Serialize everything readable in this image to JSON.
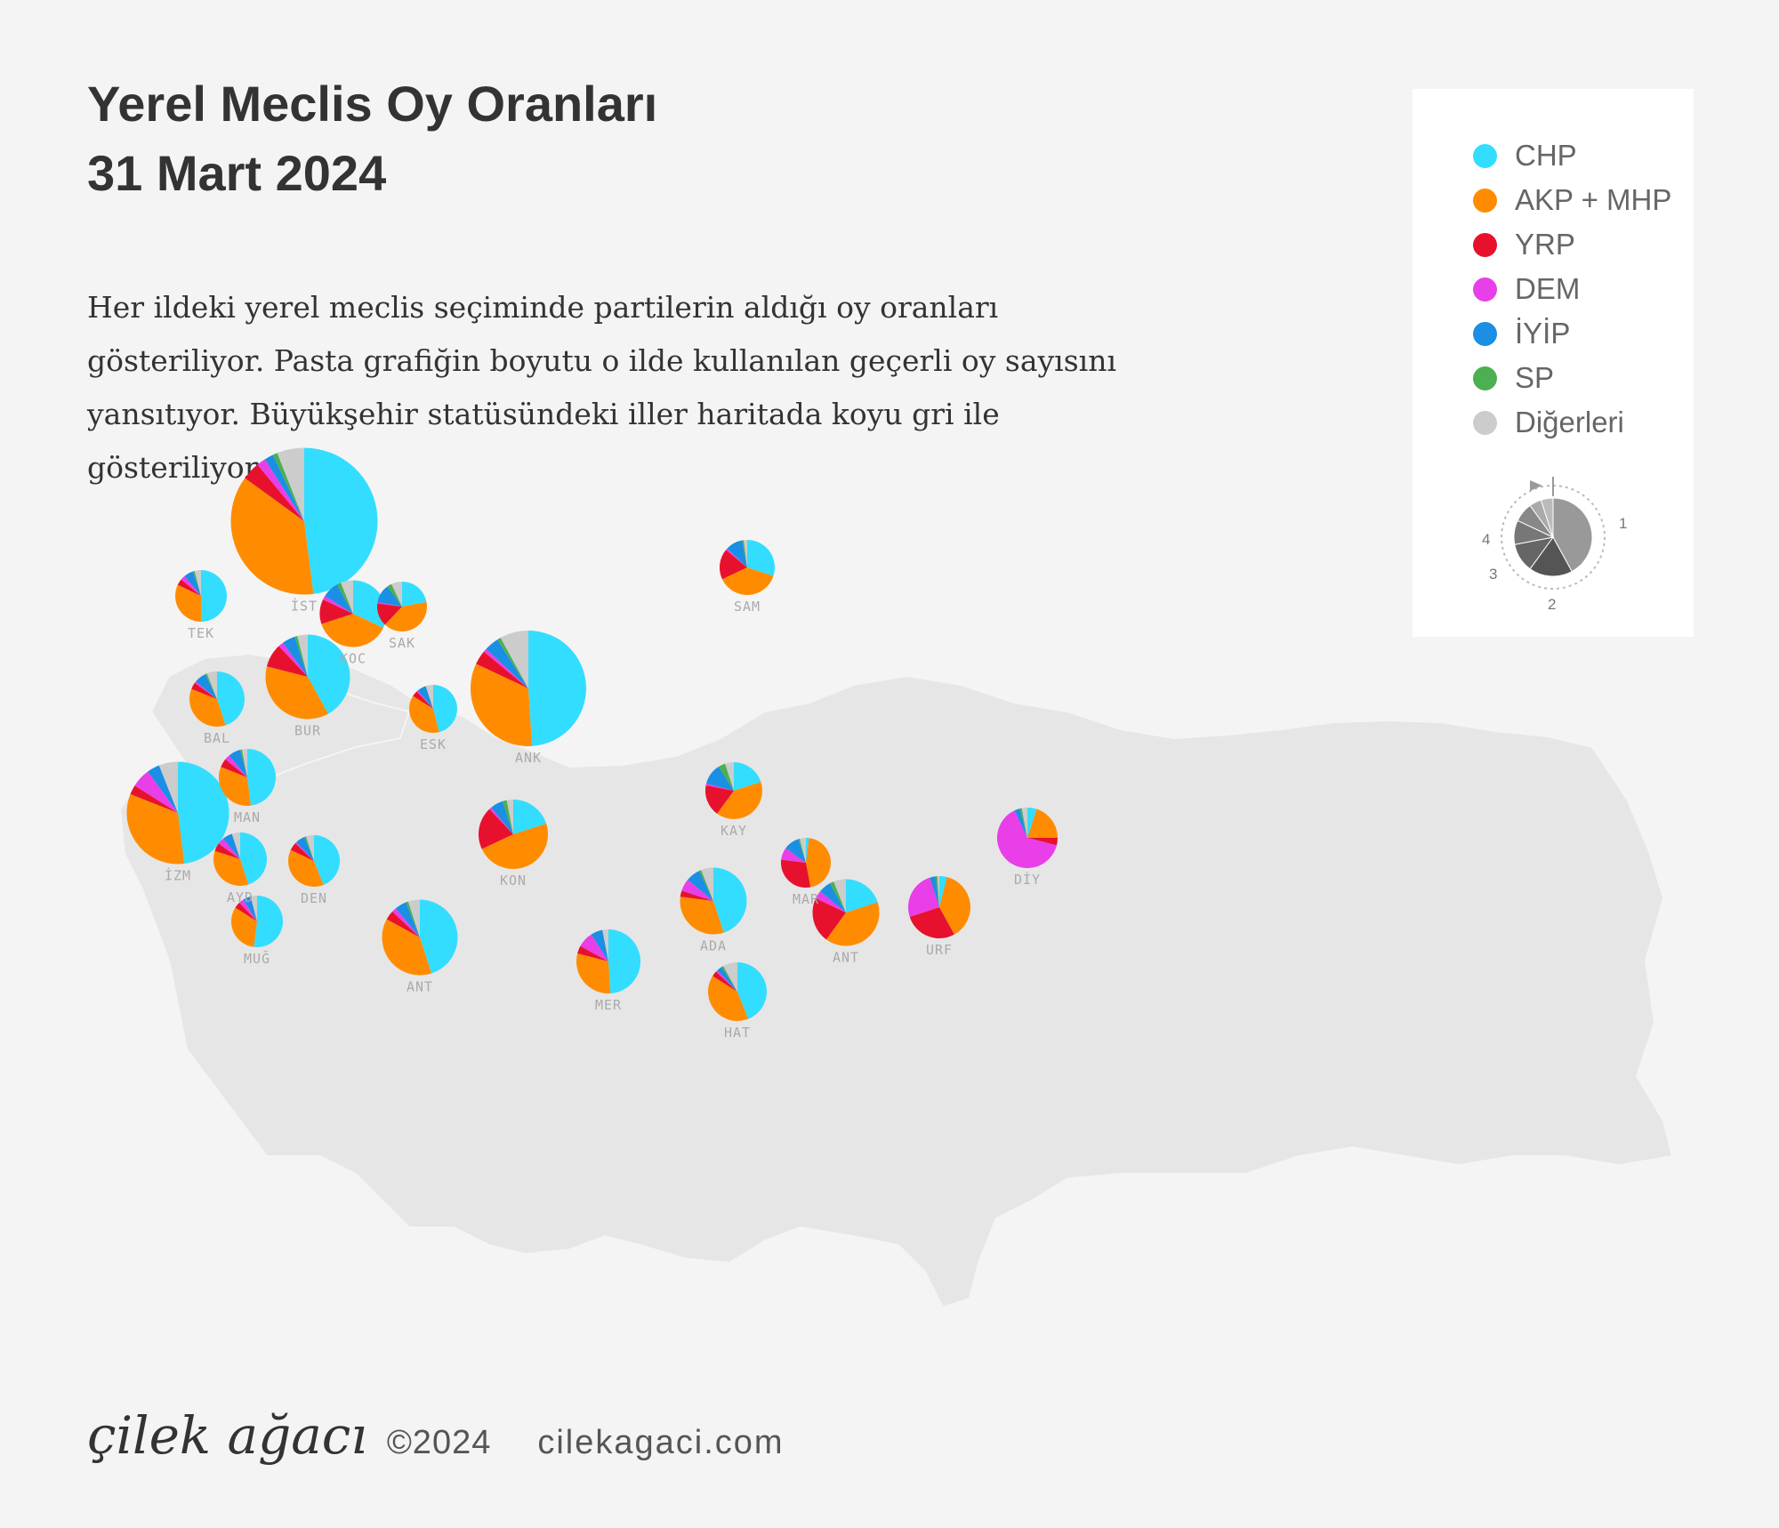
{
  "header": {
    "title_line1": "Yerel Meclis Oy Oranları",
    "title_line2": "31 Mart 2024",
    "description": "Her ildeki yerel meclis seçiminde partilerin aldığı oy oranları gösteriliyor. Pasta grafiğin boyutu o ilde kullanılan geçerli oy sayısını yansıtıyor. Büyükşehir statüsündeki iller haritada koyu gri ile gösteriliyor."
  },
  "legend": {
    "items": [
      {
        "label": "CHP",
        "color": "#33ddff"
      },
      {
        "label": "AKP + MHP",
        "color": "#ff8c00"
      },
      {
        "label": "YRP",
        "color": "#e8112d"
      },
      {
        "label": "DEM",
        "color": "#e83fe8"
      },
      {
        "label": "İYİP",
        "color": "#1a8fe3"
      },
      {
        "label": "SP",
        "color": "#4caf50"
      },
      {
        "label": "Diğerleri",
        "color": "#cccccc"
      }
    ],
    "order_numbers": [
      "1",
      "2",
      "3",
      "4"
    ]
  },
  "footer": {
    "brand": "çilek ağacı",
    "copyright": "©2024",
    "site": "cilekagaci.com"
  },
  "chart_data": {
    "type": "pie",
    "series_order": [
      "CHP",
      "AKP + MHP",
      "YRP",
      "DEM",
      "İYİP",
      "SP",
      "Diğerleri"
    ],
    "provinces": [
      {
        "label": "İST",
        "values": [
          48,
          37,
          4,
          2,
          2,
          1,
          6
        ],
        "size": 165
      },
      {
        "label": "ANK",
        "values": [
          49,
          33,
          4,
          1,
          4,
          1,
          8
        ],
        "size": 130
      },
      {
        "label": "İZM",
        "values": [
          48,
          33,
          3,
          6,
          4,
          0,
          6
        ],
        "size": 115
      },
      {
        "label": "BUR",
        "values": [
          42,
          37,
          9,
          2,
          5,
          1,
          4
        ],
        "size": 95
      },
      {
        "label": "ANT",
        "values": [
          45,
          38,
          4,
          2,
          5,
          1,
          5
        ],
        "size": 85
      },
      {
        "label": "KOC",
        "values": [
          32,
          38,
          12,
          2,
          8,
          2,
          6
        ],
        "size": 75
      },
      {
        "label": "KON",
        "values": [
          20,
          48,
          20,
          1,
          6,
          2,
          3
        ],
        "size": 78
      },
      {
        "label": "ADA",
        "values": [
          45,
          32,
          3,
          6,
          7,
          1,
          6
        ],
        "size": 75
      },
      {
        "label": "MER",
        "values": [
          49,
          30,
          4,
          8,
          6,
          0,
          3
        ],
        "size": 72
      },
      {
        "label": "ANT",
        "values": [
          20,
          40,
          22,
          4,
          6,
          2,
          6
        ],
        "size": 75
      },
      {
        "label": "URF",
        "values": [
          4,
          38,
          28,
          25,
          3,
          1,
          1
        ],
        "size": 70
      },
      {
        "label": "DİY",
        "values": [
          5,
          20,
          4,
          64,
          3,
          1,
          3
        ],
        "size": 68
      },
      {
        "label": "KAY",
        "values": [
          20,
          40,
          18,
          1,
          12,
          4,
          5
        ],
        "size": 64
      },
      {
        "label": "SAM",
        "values": [
          30,
          38,
          18,
          1,
          10,
          1,
          2
        ],
        "size": 62
      },
      {
        "label": "SAK",
        "values": [
          22,
          40,
          15,
          1,
          12,
          3,
          7
        ],
        "size": 56
      },
      {
        "label": "MAN",
        "values": [
          48,
          33,
          5,
          3,
          7,
          1,
          3
        ],
        "size": 64
      },
      {
        "label": "BAL",
        "values": [
          45,
          36,
          4,
          1,
          7,
          1,
          6
        ],
        "size": 62
      },
      {
        "label": "AYD",
        "values": [
          45,
          35,
          5,
          4,
          6,
          0,
          5
        ],
        "size": 60
      },
      {
        "label": "DEN",
        "values": [
          44,
          38,
          5,
          1,
          6,
          1,
          5
        ],
        "size": 58
      },
      {
        "label": "MUĞ",
        "values": [
          52,
          32,
          4,
          3,
          5,
          0,
          4
        ],
        "size": 58
      },
      {
        "label": "TEK",
        "values": [
          50,
          32,
          4,
          3,
          6,
          1,
          4
        ],
        "size": 58
      },
      {
        "label": "HAT",
        "values": [
          44,
          40,
          3,
          1,
          3,
          1,
          8
        ],
        "size": 66
      },
      {
        "label": "MAR",
        "values": [
          2,
          45,
          30,
          8,
          10,
          1,
          4
        ],
        "size": 56
      },
      {
        "label": "ESK",
        "values": [
          46,
          38,
          4,
          1,
          6,
          0,
          5
        ],
        "size": 54
      }
    ]
  }
}
